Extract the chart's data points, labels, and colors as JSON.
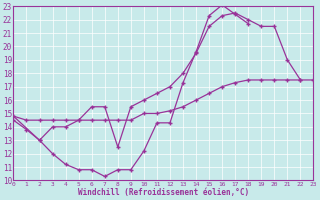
{
  "xlabel": "Windchill (Refroidissement éolien,°C)",
  "bg_color": "#c8eaea",
  "line_color": "#993399",
  "grid_color": "#ffffff",
  "xmin": 0,
  "xmax": 23,
  "ymin": 10,
  "ymax": 23,
  "curve1_x": [
    0,
    1,
    2,
    3,
    4,
    5,
    6,
    7,
    8,
    9,
    10,
    11,
    12,
    13,
    14,
    15,
    16,
    17,
    18
  ],
  "curve1_y": [
    14.5,
    13.8,
    13.0,
    12.0,
    11.2,
    10.8,
    10.8,
    10.3,
    10.8,
    10.8,
    12.2,
    14.3,
    14.3,
    17.3,
    19.6,
    22.3,
    23.1,
    22.4,
    21.7
  ],
  "curve2_x": [
    0,
    1,
    2,
    3,
    4,
    5,
    6,
    7,
    8,
    9,
    10,
    11,
    12,
    13,
    14,
    15,
    16,
    17,
    18,
    19,
    20,
    21,
    22,
    23
  ],
  "curve2_y": [
    14.8,
    14.5,
    14.5,
    14.5,
    14.5,
    14.5,
    14.5,
    14.5,
    14.5,
    14.5,
    15.0,
    15.0,
    15.2,
    15.5,
    16.0,
    16.5,
    17.0,
    17.3,
    17.5,
    17.5,
    17.5,
    17.5,
    17.5,
    17.5
  ],
  "curve3_x": [
    0,
    2,
    3,
    4,
    5,
    6,
    7,
    8,
    9,
    10,
    11,
    12,
    13,
    14,
    15,
    16,
    17,
    18,
    19,
    20,
    21,
    22
  ],
  "curve3_y": [
    14.8,
    13.0,
    14.0,
    14.0,
    14.5,
    15.5,
    15.5,
    12.5,
    15.5,
    16.0,
    16.5,
    17.0,
    18.0,
    19.5,
    21.5,
    22.3,
    22.5,
    22.0,
    21.5,
    21.5,
    19.0,
    17.5
  ]
}
